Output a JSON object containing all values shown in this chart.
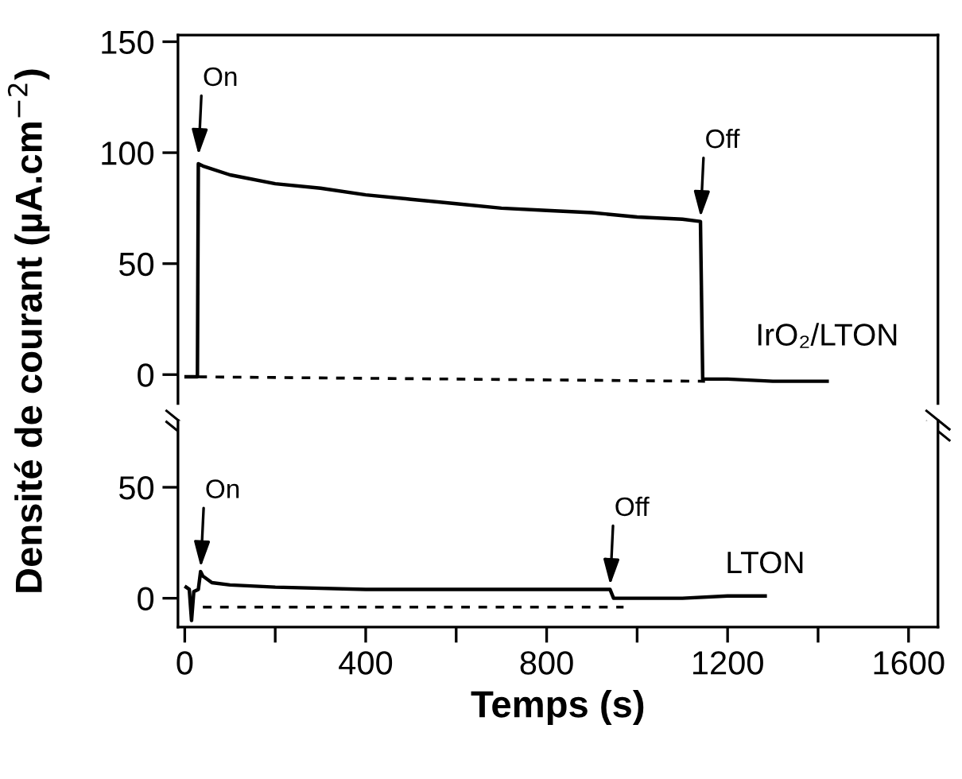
{
  "chart_data": [
    {
      "type": "line",
      "ylabel": "Densité de courant (µA.cm$^{−2}$)",
      "xlim": [
        -15,
        1665
      ],
      "ylim": [
        -13,
        153
      ],
      "yticks": [
        0,
        50,
        100,
        150
      ],
      "tick_labels": "y",
      "grid": false,
      "legend": false,
      "series": [
        {
          "name": "IrO₂/LTON",
          "color": "#000000",
          "x": [
            3,
            28,
            30,
            40,
            100,
            200,
            300,
            400,
            500,
            600,
            700,
            800,
            900,
            1000,
            1100,
            1140,
            1145,
            1200,
            1300,
            1420
          ],
          "values": [
            -1,
            -1,
            95,
            94,
            90,
            86,
            84,
            81,
            79,
            77,
            75,
            74,
            73,
            71,
            70,
            69,
            -2,
            -2,
            -3,
            -3
          ]
        },
        {
          "color": "#000000",
          "line_style": "dashed",
          "x": [
            30,
            1150
          ],
          "values": [
            -1,
            -3
          ]
        }
      ],
      "annotations": [
        {
          "text": "On",
          "x": 30,
          "y": 97
        },
        {
          "text": "Off",
          "x": 1140,
          "y": 69
        }
      ]
    },
    {
      "type": "line",
      "xlabel": "Temps (s)",
      "xlim": [
        -15,
        1665
      ],
      "ylim": [
        -13,
        80
      ],
      "yticks": [
        0,
        50
      ],
      "xticks": [
        0,
        {
          "value": 200,
          "label": null
        },
        400,
        {
          "value": 600,
          "label": null
        },
        800,
        {
          "value": 1000,
          "label": null
        },
        1200,
        {
          "value": 1400,
          "label": null
        },
        1600
      ],
      "grid": false,
      "legend": false,
      "series": [
        {
          "name": "LTON",
          "color": "#000000",
          "x": [
            3,
            10,
            15,
            20,
            30,
            35,
            40,
            60,
            100,
            200,
            400,
            600,
            800,
            940,
            948,
            1000,
            1100,
            1200,
            1283
          ],
          "values": [
            5,
            4,
            -10,
            3,
            4,
            12,
            10,
            7,
            6,
            5,
            4,
            4,
            4,
            4,
            0,
            0,
            0,
            1,
            1
          ]
        },
        {
          "color": "#000000",
          "line_style": "dashed",
          "x": [
            40,
            970
          ],
          "values": [
            -4,
            -4
          ]
        }
      ],
      "annotations": [
        {
          "text": "On",
          "x": 35,
          "y": 12
        },
        {
          "text": "Off",
          "x": 940,
          "y": 4
        }
      ]
    }
  ]
}
